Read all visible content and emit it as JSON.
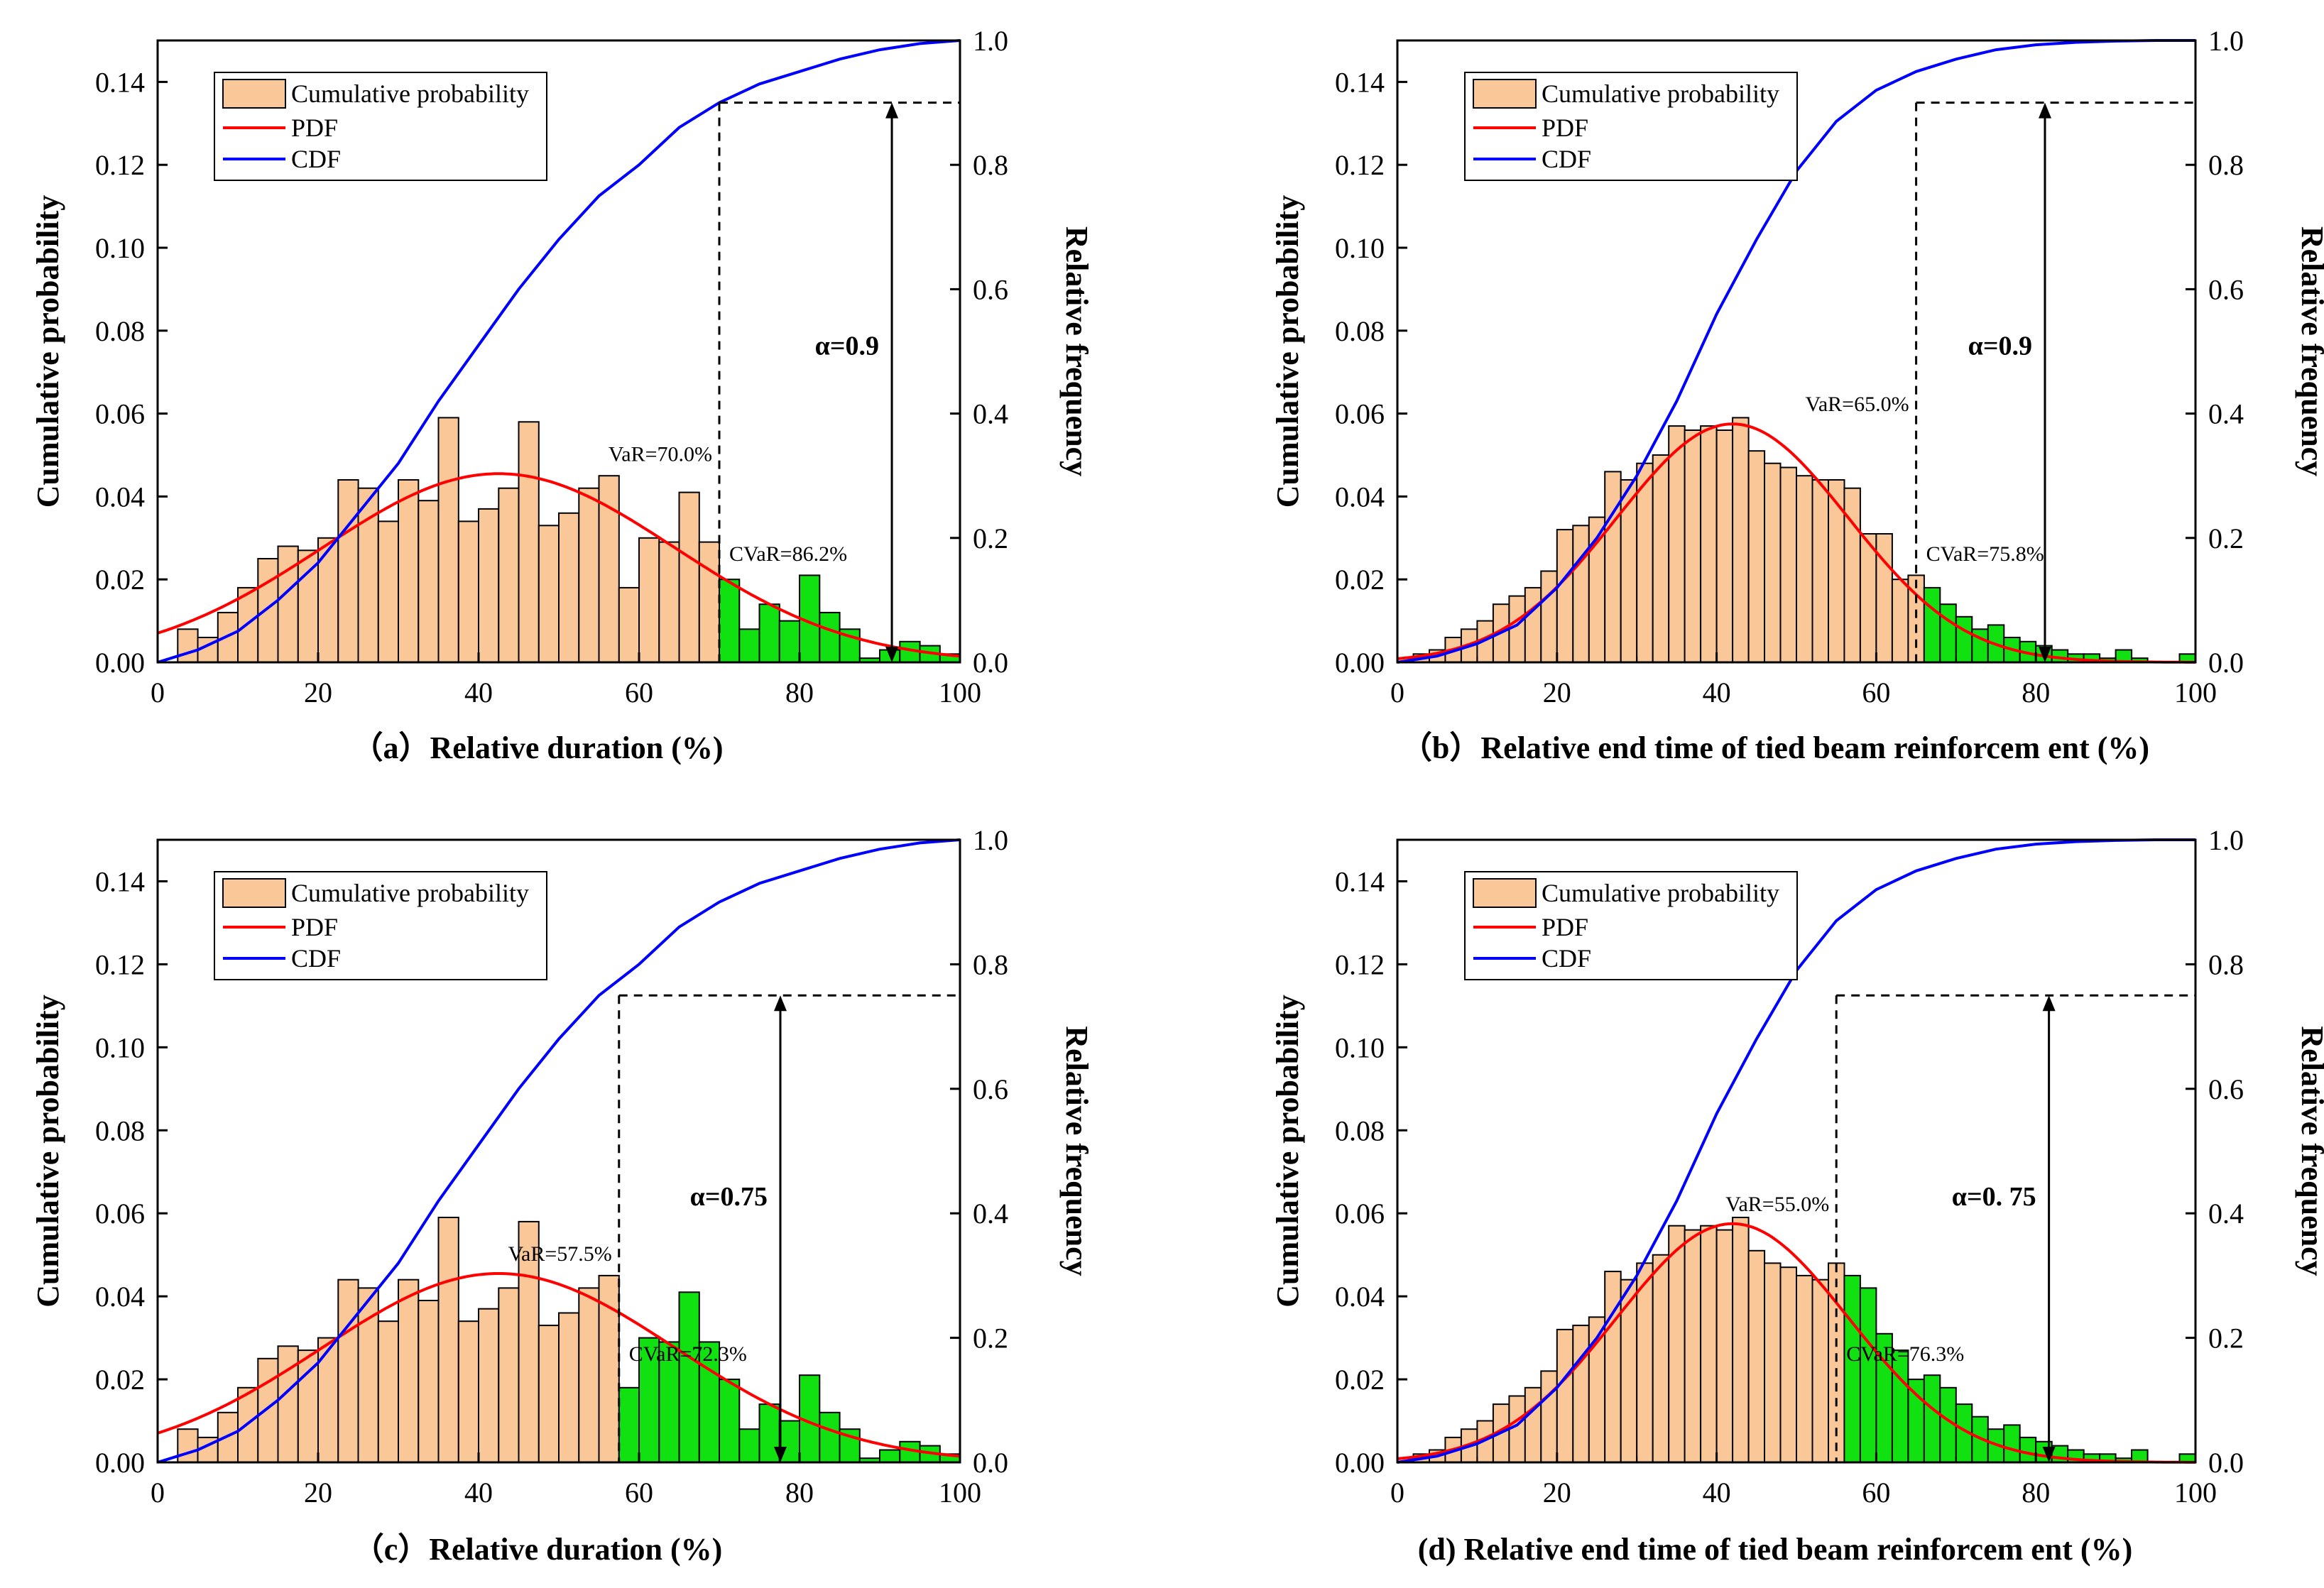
{
  "colors": {
    "hist_fill": "#FAC898",
    "tail_fill": "#11E011",
    "bar_stroke": "#000000",
    "pdf": "#FF0000",
    "cdf": "#0000FF",
    "guide": "#000000"
  },
  "chart_data": [
    {
      "id": "a",
      "type": "bar",
      "caption": "（a）Relative duration (%)",
      "ylabel_left": "Cumulative probability",
      "ylabel_right": "Relative frequency",
      "xlim": [
        0,
        100
      ],
      "ylim_left": [
        0,
        0.15
      ],
      "ylim_right": [
        0,
        1.0
      ],
      "xticks": [
        "0",
        "20",
        "40",
        "60",
        "80",
        "100"
      ],
      "yticks_left": [
        "0.00",
        "0.02",
        "0.04",
        "0.06",
        "0.08",
        "0.10",
        "0.12",
        "0.14"
      ],
      "yticks_right": [
        "0.0",
        "0.2",
        "0.4",
        "0.6",
        "0.8",
        "1.0"
      ],
      "legend": [
        "Cumulative probability",
        "PDF",
        "CDF"
      ],
      "alpha_label": "α=0.9",
      "alpha": 0.9,
      "var_label": "VaR=70.0%",
      "var": 70.0,
      "cvar_label": "CVaR=86.2%",
      "cvar": 86.2,
      "pdf": {
        "mean": 42.5,
        "sd": 22.0,
        "peak": 0.0455
      },
      "bars": {
        "x": [
          3.75,
          6.25,
          8.75,
          11.25,
          13.75,
          16.25,
          18.75,
          21.25,
          23.75,
          26.25,
          28.75,
          31.25,
          33.75,
          36.25,
          38.75,
          41.25,
          43.75,
          46.25,
          48.75,
          51.25,
          53.75,
          56.25,
          58.75,
          61.25,
          63.75,
          66.25,
          68.75,
          71.25,
          73.75,
          76.25,
          78.75,
          81.25,
          83.75,
          86.25,
          88.75,
          91.25,
          93.75,
          96.25,
          98.75
        ],
        "values": [
          0.008,
          0.006,
          0.012,
          0.018,
          0.025,
          0.028,
          0.027,
          0.03,
          0.044,
          0.042,
          0.034,
          0.044,
          0.039,
          0.059,
          0.034,
          0.037,
          0.042,
          0.058,
          0.033,
          0.036,
          0.042,
          0.045,
          0.018,
          0.03,
          0.029,
          0.041,
          0.029,
          0.02,
          0.008,
          0.014,
          0.01,
          0.021,
          0.012,
          0.008,
          0.001,
          0.003,
          0.005,
          0.004,
          0.002
        ]
      },
      "cdf": {
        "x": [
          0,
          5,
          10,
          15,
          20,
          25,
          30,
          35,
          40,
          45,
          50,
          55,
          60,
          65,
          70,
          75,
          80,
          85,
          90,
          95,
          100
        ],
        "y": [
          0.0,
          0.02,
          0.05,
          0.1,
          0.16,
          0.24,
          0.32,
          0.42,
          0.51,
          0.6,
          0.68,
          0.75,
          0.8,
          0.86,
          0.9,
          0.93,
          0.95,
          0.97,
          0.985,
          0.995,
          1.0
        ]
      }
    },
    {
      "id": "b",
      "type": "bar",
      "caption": "（b）Relative end time of tied beam reinforcem ent (%)",
      "ylabel_left": "Cumulative probability",
      "ylabel_right": "Relative frequency",
      "xlim": [
        0,
        100
      ],
      "ylim_left": [
        0,
        0.15
      ],
      "ylim_right": [
        0,
        1.0
      ],
      "xticks": [
        "0",
        "20",
        "40",
        "60",
        "80",
        "100"
      ],
      "yticks_left": [
        "0.00",
        "0.02",
        "0.04",
        "0.06",
        "0.08",
        "0.10",
        "0.12",
        "0.14"
      ],
      "yticks_right": [
        "0.0",
        "0.2",
        "0.4",
        "0.6",
        "0.8",
        "1.0"
      ],
      "legend": [
        "Cumulative probability",
        "PDF",
        "CDF"
      ],
      "alpha_label": "α=0.9",
      "alpha": 0.9,
      "var_label": "VaR=65.0%",
      "var": 65.0,
      "cvar_label": "CVaR=75.8%",
      "cvar": 75.8,
      "pdf": {
        "mean": 42.0,
        "sd": 14.5,
        "peak": 0.0575
      },
      "bars": {
        "x": [
          1.0,
          3.0,
          5.0,
          7.0,
          9.0,
          11.0,
          13.0,
          15.0,
          17.0,
          19.0,
          21.0,
          23.0,
          25.0,
          27.0,
          29.0,
          31.0,
          33.0,
          35.0,
          37.0,
          39.0,
          41.0,
          43.0,
          45.0,
          47.0,
          49.0,
          51.0,
          53.0,
          55.0,
          57.0,
          59.0,
          61.0,
          63.0,
          65.0,
          67.0,
          69.0,
          71.0,
          73.0,
          75.0,
          77.0,
          79.0,
          81.0,
          83.0,
          85.0,
          87.0,
          89.0,
          91.0,
          93.0,
          95.0,
          97.0,
          99.0
        ],
        "values": [
          0.001,
          0.002,
          0.003,
          0.006,
          0.008,
          0.01,
          0.014,
          0.016,
          0.018,
          0.022,
          0.032,
          0.033,
          0.035,
          0.046,
          0.044,
          0.048,
          0.05,
          0.057,
          0.056,
          0.057,
          0.056,
          0.059,
          0.051,
          0.048,
          0.047,
          0.045,
          0.044,
          0.044,
          0.042,
          0.031,
          0.031,
          0.02,
          0.021,
          0.018,
          0.014,
          0.011,
          0.008,
          0.009,
          0.006,
          0.005,
          0.004,
          0.003,
          0.002,
          0.002,
          0.001,
          0.003,
          0.001,
          0.0,
          0.0,
          0.002
        ]
      },
      "cdf": {
        "x": [
          0,
          5,
          10,
          15,
          20,
          25,
          30,
          35,
          40,
          45,
          50,
          55,
          60,
          65,
          70,
          75,
          80,
          85,
          90,
          95,
          100
        ],
        "y": [
          0.0,
          0.01,
          0.03,
          0.06,
          0.12,
          0.2,
          0.3,
          0.42,
          0.56,
          0.68,
          0.79,
          0.87,
          0.92,
          0.95,
          0.97,
          0.985,
          0.993,
          0.997,
          0.999,
          1.0,
          1.0
        ]
      }
    },
    {
      "id": "c",
      "type": "bar",
      "caption": "（c）Relative duration (%)",
      "ylabel_left": "Cumulative probability",
      "ylabel_right": "Relative frequency",
      "xlim": [
        0,
        100
      ],
      "ylim_left": [
        0,
        0.15
      ],
      "ylim_right": [
        0,
        1.0
      ],
      "xticks": [
        "0",
        "20",
        "40",
        "60",
        "80",
        "100"
      ],
      "yticks_left": [
        "0.00",
        "0.02",
        "0.04",
        "0.06",
        "0.08",
        "0.10",
        "0.12",
        "0.14"
      ],
      "yticks_right": [
        "0.0",
        "0.2",
        "0.4",
        "0.6",
        "0.8",
        "1.0"
      ],
      "legend": [
        "Cumulative probability",
        "PDF",
        "CDF"
      ],
      "alpha_label": "α=0.75",
      "alpha": 0.75,
      "var_label": "VaR=57.5%",
      "var": 57.5,
      "cvar_label": "CVaR=72.3%",
      "cvar": 72.3,
      "pdf": {
        "mean": 42.5,
        "sd": 22.0,
        "peak": 0.0455
      },
      "bars": {
        "x": [
          3.75,
          6.25,
          8.75,
          11.25,
          13.75,
          16.25,
          18.75,
          21.25,
          23.75,
          26.25,
          28.75,
          31.25,
          33.75,
          36.25,
          38.75,
          41.25,
          43.75,
          46.25,
          48.75,
          51.25,
          53.75,
          56.25,
          58.75,
          61.25,
          63.75,
          66.25,
          68.75,
          71.25,
          73.75,
          76.25,
          78.75,
          81.25,
          83.75,
          86.25,
          88.75,
          91.25,
          93.75,
          96.25,
          98.75
        ],
        "values": [
          0.008,
          0.006,
          0.012,
          0.018,
          0.025,
          0.028,
          0.027,
          0.03,
          0.044,
          0.042,
          0.034,
          0.044,
          0.039,
          0.059,
          0.034,
          0.037,
          0.042,
          0.058,
          0.033,
          0.036,
          0.042,
          0.045,
          0.018,
          0.03,
          0.029,
          0.041,
          0.029,
          0.02,
          0.008,
          0.014,
          0.01,
          0.021,
          0.012,
          0.008,
          0.001,
          0.003,
          0.005,
          0.004,
          0.002
        ]
      },
      "cdf": {
        "x": [
          0,
          5,
          10,
          15,
          20,
          25,
          30,
          35,
          40,
          45,
          50,
          55,
          60,
          65,
          70,
          75,
          80,
          85,
          90,
          95,
          100
        ],
        "y": [
          0.0,
          0.02,
          0.05,
          0.1,
          0.16,
          0.24,
          0.32,
          0.42,
          0.51,
          0.6,
          0.68,
          0.75,
          0.8,
          0.86,
          0.9,
          0.93,
          0.95,
          0.97,
          0.985,
          0.995,
          1.0
        ]
      }
    },
    {
      "id": "d",
      "type": "bar",
      "caption": "(d) Relative end time of tied beam reinforcem ent (%)",
      "ylabel_left": "Cumulative probability",
      "ylabel_right": "Relative frequency",
      "xlim": [
        0,
        100
      ],
      "ylim_left": [
        0,
        0.15
      ],
      "ylim_right": [
        0,
        1.0
      ],
      "xticks": [
        "0",
        "20",
        "40",
        "60",
        "80",
        "100"
      ],
      "yticks_left": [
        "0.00",
        "0.02",
        "0.04",
        "0.06",
        "0.08",
        "0.10",
        "0.12",
        "0.14"
      ],
      "yticks_right": [
        "0.0",
        "0.2",
        "0.4",
        "0.6",
        "0.8",
        "1.0"
      ],
      "legend": [
        "Cumulative probability",
        "PDF",
        "CDF"
      ],
      "alpha_label": "α=0. 75",
      "alpha": 0.75,
      "var_label": "VaR=55.0%",
      "var": 55.0,
      "cvar_label": "CVaR=76.3%",
      "cvar": 76.3,
      "pdf": {
        "mean": 42.0,
        "sd": 14.5,
        "peak": 0.0575
      },
      "bars": {
        "x": [
          1.0,
          3.0,
          5.0,
          7.0,
          9.0,
          11.0,
          13.0,
          15.0,
          17.0,
          19.0,
          21.0,
          23.0,
          25.0,
          27.0,
          29.0,
          31.0,
          33.0,
          35.0,
          37.0,
          39.0,
          41.0,
          43.0,
          45.0,
          47.0,
          49.0,
          51.0,
          53.0,
          55.0,
          57.0,
          59.0,
          61.0,
          63.0,
          65.0,
          67.0,
          69.0,
          71.0,
          73.0,
          75.0,
          77.0,
          79.0,
          81.0,
          83.0,
          85.0,
          87.0,
          89.0,
          91.0,
          93.0,
          95.0,
          97.0,
          99.0
        ],
        "values": [
          0.001,
          0.002,
          0.003,
          0.006,
          0.008,
          0.01,
          0.014,
          0.016,
          0.018,
          0.022,
          0.032,
          0.033,
          0.035,
          0.046,
          0.044,
          0.048,
          0.05,
          0.057,
          0.056,
          0.057,
          0.056,
          0.059,
          0.051,
          0.048,
          0.047,
          0.045,
          0.044,
          0.048,
          0.045,
          0.042,
          0.031,
          0.027,
          0.02,
          0.021,
          0.018,
          0.014,
          0.011,
          0.008,
          0.009,
          0.006,
          0.005,
          0.004,
          0.003,
          0.002,
          0.002,
          0.001,
          0.003,
          0.0,
          0.0,
          0.002
        ]
      },
      "cdf": {
        "x": [
          0,
          5,
          10,
          15,
          20,
          25,
          30,
          35,
          40,
          45,
          50,
          55,
          60,
          65,
          70,
          75,
          80,
          85,
          90,
          95,
          100
        ],
        "y": [
          0.0,
          0.01,
          0.03,
          0.06,
          0.12,
          0.2,
          0.3,
          0.42,
          0.56,
          0.68,
          0.79,
          0.87,
          0.92,
          0.95,
          0.97,
          0.985,
          0.993,
          0.997,
          0.999,
          1.0,
          1.0
        ]
      }
    }
  ]
}
